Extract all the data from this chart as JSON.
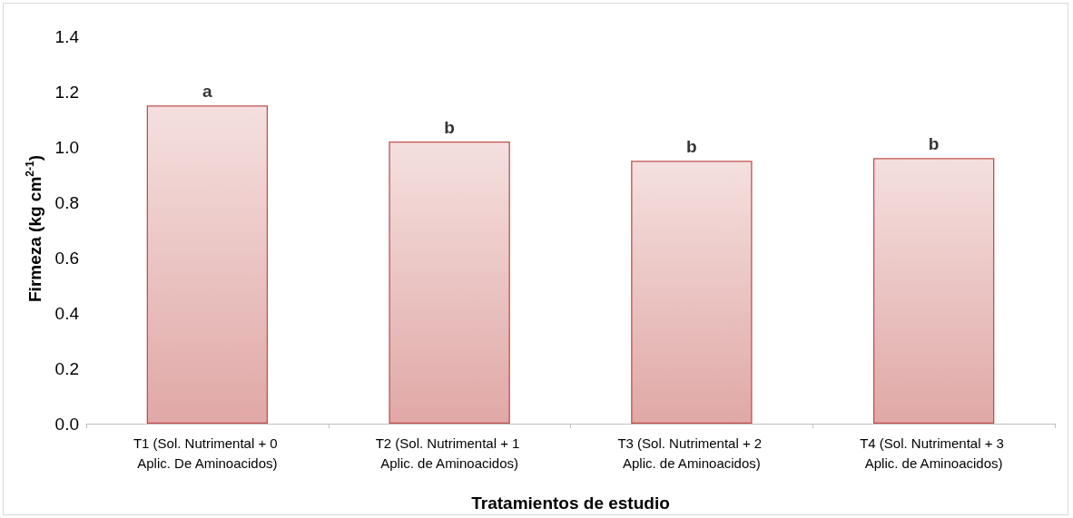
{
  "chart_data": {
    "type": "bar",
    "xlabel": "Tratamientos de estudio",
    "ylabel": "Firmeza (kg cm$^{2-1}$)",
    "categories": [
      "T1 (Sol. Nutrimental + 0 Aplic. De Aminoacidos)",
      "T2 (Sol. Nutrimental + 1 Aplic. de Aminoacidos)",
      "T3 (Sol. Nutrimental + 2 Aplic. de Aminoacidos)",
      "T4 (Sol. Nutrimental + 3 Aplic. de Aminoacidos)"
    ],
    "values": [
      1.15,
      1.02,
      0.95,
      0.96
    ],
    "color": "#c0504d",
    "ylim": [
      0,
      1.4
    ],
    "yticks": [
      {
        "value": 0,
        "label": "0.0"
      },
      {
        "value": 0.2,
        "label": "0.2"
      },
      {
        "value": 0.4,
        "label": "0.4"
      },
      {
        "value": 0.6,
        "label": "0.6"
      },
      {
        "value": 0.8,
        "label": "0.8"
      },
      {
        "value": 1,
        "label": "1.0"
      },
      {
        "value": 1.2,
        "label": "1.2"
      },
      {
        "value": 1.4,
        "label": "1.4"
      }
    ],
    "grid": false,
    "annotations": [
      {
        "text": "a",
        "x": "T1 (Sol. Nutrimental + 0 Aplic. De Aminoacidos)",
        "y": 1.15
      },
      {
        "text": "b",
        "x": "T2 (Sol. Nutrimental + 1 Aplic. de Aminoacidos)",
        "y": 1.02
      },
      {
        "text": "b",
        "x": "T3 (Sol. Nutrimental + 2 Aplic. de Aminoacidos)",
        "y": 0.95
      },
      {
        "text": "b",
        "x": "T4 (Sol. Nutrimental + 3 Aplic. de Aminoacidos)",
        "y": 0.96
      }
    ]
  }
}
